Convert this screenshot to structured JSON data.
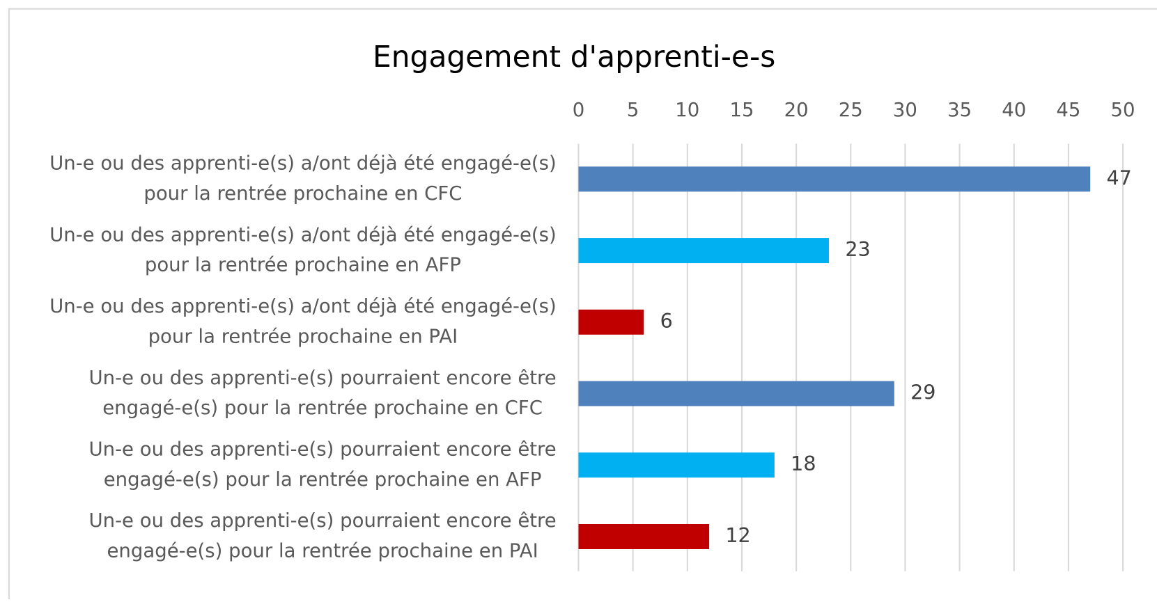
{
  "chart_data": {
    "type": "bar",
    "orientation": "horizontal",
    "title": "Engagement d'apprenti-e-s",
    "categories": [
      "Un-e ou des apprenti-e(s) a/ont déjà été engagé-e(s)\npour la rentrée prochaine en CFC",
      "Un-e ou des apprenti-e(s) a/ont déjà été engagé-e(s)\npour la rentrée prochaine en AFP",
      "Un-e ou des apprenti-e(s) a/ont déjà été engagé-e(s)\npour la rentrée prochaine en PAI",
      "Un-e ou des apprenti-e(s) pourraient encore être\nengagé-e(s) pour la rentrée prochaine en CFC",
      "Un-e ou des apprenti-e(s) pourraient encore être\nengagé-e(s) pour la rentrée prochaine en AFP",
      "Un-e ou des apprenti-e(s) pourraient encore être\nengagé-e(s) pour la rentrée prochaine en PAI"
    ],
    "values": [
      47,
      23,
      6,
      29,
      18,
      12
    ],
    "colors": [
      "#4f81bd",
      "#00b0f0",
      "#c00000",
      "#4f81bd",
      "#00b0f0",
      "#c00000"
    ],
    "xlim": [
      0,
      50
    ],
    "xticks": [
      0,
      5,
      10,
      15,
      20,
      25,
      30,
      35,
      40,
      45,
      50
    ],
    "grid": true
  }
}
